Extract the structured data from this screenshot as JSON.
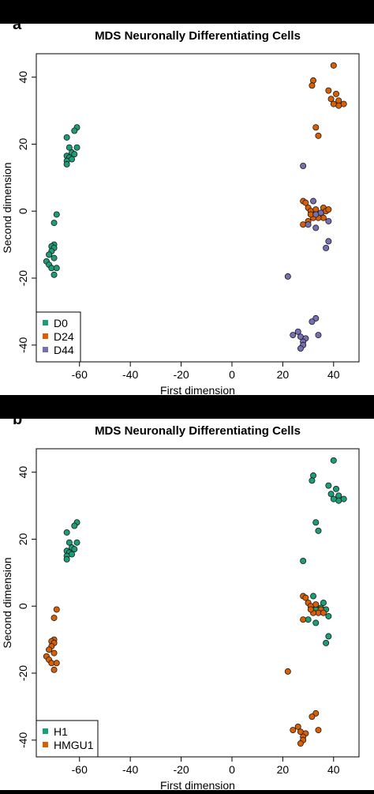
{
  "colors": {
    "green": "#1b9e77",
    "orange": "#d95f02",
    "purple": "#7570b3",
    "frame": "#000000"
  },
  "chart_data": [
    {
      "panel_label": "a",
      "type": "scatter",
      "title": "MDS Neuronally Differentiating Cells",
      "xlabel": "First dimension",
      "ylabel": "Second dimension",
      "xlim": [
        -77,
        50
      ],
      "ylim": [
        -45,
        47
      ],
      "xticks": [
        -60,
        -40,
        -20,
        0,
        20,
        40
      ],
      "xtick_labels": [
        "-60",
        "-40",
        "-20",
        "0",
        "20",
        "40"
      ],
      "yticks": [
        -40,
        -20,
        0,
        20,
        40
      ],
      "ytick_labels": [
        "-40",
        "-20",
        "0",
        "20",
        "40"
      ],
      "grid": false,
      "legend": {
        "position": "bottom-left",
        "entries": [
          "D0",
          "D24",
          "D44"
        ]
      },
      "series": [
        {
          "name": "D0",
          "color": "#1b9e77",
          "points": [
            [
              -61,
              25
            ],
            [
              -62,
              24
            ],
            [
              -65,
              22
            ],
            [
              -64,
              19
            ],
            [
              -61,
              19
            ],
            [
              -63,
              17.5
            ],
            [
              -62,
              17
            ],
            [
              -65,
              16.5
            ],
            [
              -64,
              16
            ],
            [
              -63,
              15.5
            ],
            [
              -65,
              15
            ],
            [
              -65,
              14
            ],
            [
              -69,
              -1
            ],
            [
              -70,
              -3.5
            ],
            [
              -70,
              -10
            ],
            [
              -71,
              -10.5
            ],
            [
              -70,
              -11
            ],
            [
              -71,
              -12
            ],
            [
              -72,
              -13
            ],
            [
              -70,
              -14
            ],
            [
              -73,
              -15
            ],
            [
              -72,
              -16
            ],
            [
              -71,
              -17
            ],
            [
              -69,
              -17
            ],
            [
              -70,
              -19
            ]
          ]
        },
        {
          "name": "D24",
          "color": "#d95f02",
          "points": [
            [
              40,
              43.5
            ],
            [
              38,
              36
            ],
            [
              32,
              39
            ],
            [
              31.5,
              37.5
            ],
            [
              41,
              35
            ],
            [
              44,
              32
            ],
            [
              42,
              33
            ],
            [
              39,
              33.5
            ],
            [
              42,
              31.5
            ],
            [
              40,
              32
            ],
            [
              33,
              25
            ],
            [
              34,
              22.5
            ],
            [
              28,
              3
            ],
            [
              29,
              2.5
            ],
            [
              30,
              1
            ],
            [
              31,
              0
            ],
            [
              33,
              -1
            ],
            [
              35,
              -1
            ],
            [
              36,
              1
            ],
            [
              37,
              0
            ],
            [
              36,
              -2
            ],
            [
              34,
              -2
            ],
            [
              32,
              -2
            ],
            [
              30,
              -3
            ],
            [
              28,
              -4
            ],
            [
              38,
              0.5
            ],
            [
              33,
              0.5
            ],
            [
              31,
              -1
            ]
          ]
        },
        {
          "name": "D44",
          "color": "#7570b3",
          "points": [
            [
              28,
              13.5
            ],
            [
              32,
              3
            ],
            [
              35,
              -0.5
            ],
            [
              33,
              -1
            ],
            [
              38,
              -3
            ],
            [
              30,
              -4
            ],
            [
              38,
              -9
            ],
            [
              33,
              -5
            ],
            [
              37,
              -11
            ],
            [
              22,
              -19.5
            ],
            [
              33,
              -32
            ],
            [
              31.5,
              -33
            ],
            [
              26,
              -36
            ],
            [
              27,
              -37.5
            ],
            [
              29,
              -38
            ],
            [
              28,
              -39
            ],
            [
              34,
              -37
            ],
            [
              28,
              -40
            ],
            [
              27,
              -41
            ],
            [
              24,
              -37
            ]
          ]
        }
      ]
    },
    {
      "panel_label": "b",
      "type": "scatter",
      "title": "MDS Neuronally Differentiating Cells",
      "xlabel": "First dimension",
      "ylabel": "Second dimension",
      "xlim": [
        -77,
        50
      ],
      "ylim": [
        -45,
        47
      ],
      "xticks": [
        -60,
        -40,
        -20,
        0,
        20,
        40
      ],
      "xtick_labels": [
        "-60",
        "-40",
        "-20",
        "0",
        "20",
        "40"
      ],
      "yticks": [
        -40,
        -20,
        0,
        20,
        40
      ],
      "ytick_labels": [
        "-40",
        "-20",
        "0",
        "20",
        "40"
      ],
      "grid": false,
      "legend": {
        "position": "bottom-left",
        "entries": [
          "H1",
          "HMGU1"
        ]
      },
      "series": [
        {
          "name": "H1",
          "color": "#1b9e77",
          "points": [
            [
              -61,
              25
            ],
            [
              -62,
              24
            ],
            [
              -65,
              22
            ],
            [
              -64,
              19
            ],
            [
              -61,
              19
            ],
            [
              -63,
              17.5
            ],
            [
              -62,
              17
            ],
            [
              -65,
              16.5
            ],
            [
              -64,
              16
            ],
            [
              -63,
              15.5
            ],
            [
              -65,
              15
            ],
            [
              -65,
              14
            ],
            [
              40,
              43.5
            ],
            [
              38,
              36
            ],
            [
              32,
              39
            ],
            [
              31.5,
              37.5
            ],
            [
              41,
              35
            ],
            [
              44,
              32
            ],
            [
              42,
              33
            ],
            [
              39,
              33.5
            ],
            [
              42,
              31.5
            ],
            [
              40,
              32
            ],
            [
              33,
              25
            ],
            [
              34,
              22.5
            ],
            [
              28,
              13.5
            ],
            [
              32,
              3
            ],
            [
              35,
              -0.5
            ],
            [
              33,
              -1
            ],
            [
              38,
              -3
            ],
            [
              30,
              -4
            ],
            [
              38,
              -9
            ],
            [
              33,
              -5
            ],
            [
              37,
              -11
            ],
            [
              36,
              1
            ],
            [
              37,
              -1
            ]
          ]
        },
        {
          "name": "HMGU1",
          "color": "#d95f02",
          "points": [
            [
              -69,
              -1
            ],
            [
              -70,
              -3.5
            ],
            [
              -70,
              -10
            ],
            [
              -71,
              -10.5
            ],
            [
              -70,
              -11
            ],
            [
              -71,
              -12
            ],
            [
              -72,
              -13
            ],
            [
              -70,
              -14
            ],
            [
              -73,
              -15
            ],
            [
              -72,
              -16
            ],
            [
              -71,
              -17
            ],
            [
              -69,
              -17
            ],
            [
              -70,
              -19
            ],
            [
              28,
              3
            ],
            [
              29,
              2.5
            ],
            [
              30,
              1
            ],
            [
              31,
              0
            ],
            [
              33,
              0.5
            ],
            [
              35,
              -1
            ],
            [
              34,
              -2
            ],
            [
              32,
              -2
            ],
            [
              28,
              -4
            ],
            [
              31,
              -1
            ],
            [
              36,
              -2
            ],
            [
              22,
              -19.5
            ],
            [
              33,
              -32
            ],
            [
              31.5,
              -33
            ],
            [
              26,
              -36
            ],
            [
              27,
              -37.5
            ],
            [
              29,
              -38
            ],
            [
              28,
              -39
            ],
            [
              34,
              -37
            ],
            [
              28,
              -40
            ],
            [
              27,
              -41
            ],
            [
              24,
              -37
            ]
          ]
        }
      ]
    }
  ]
}
